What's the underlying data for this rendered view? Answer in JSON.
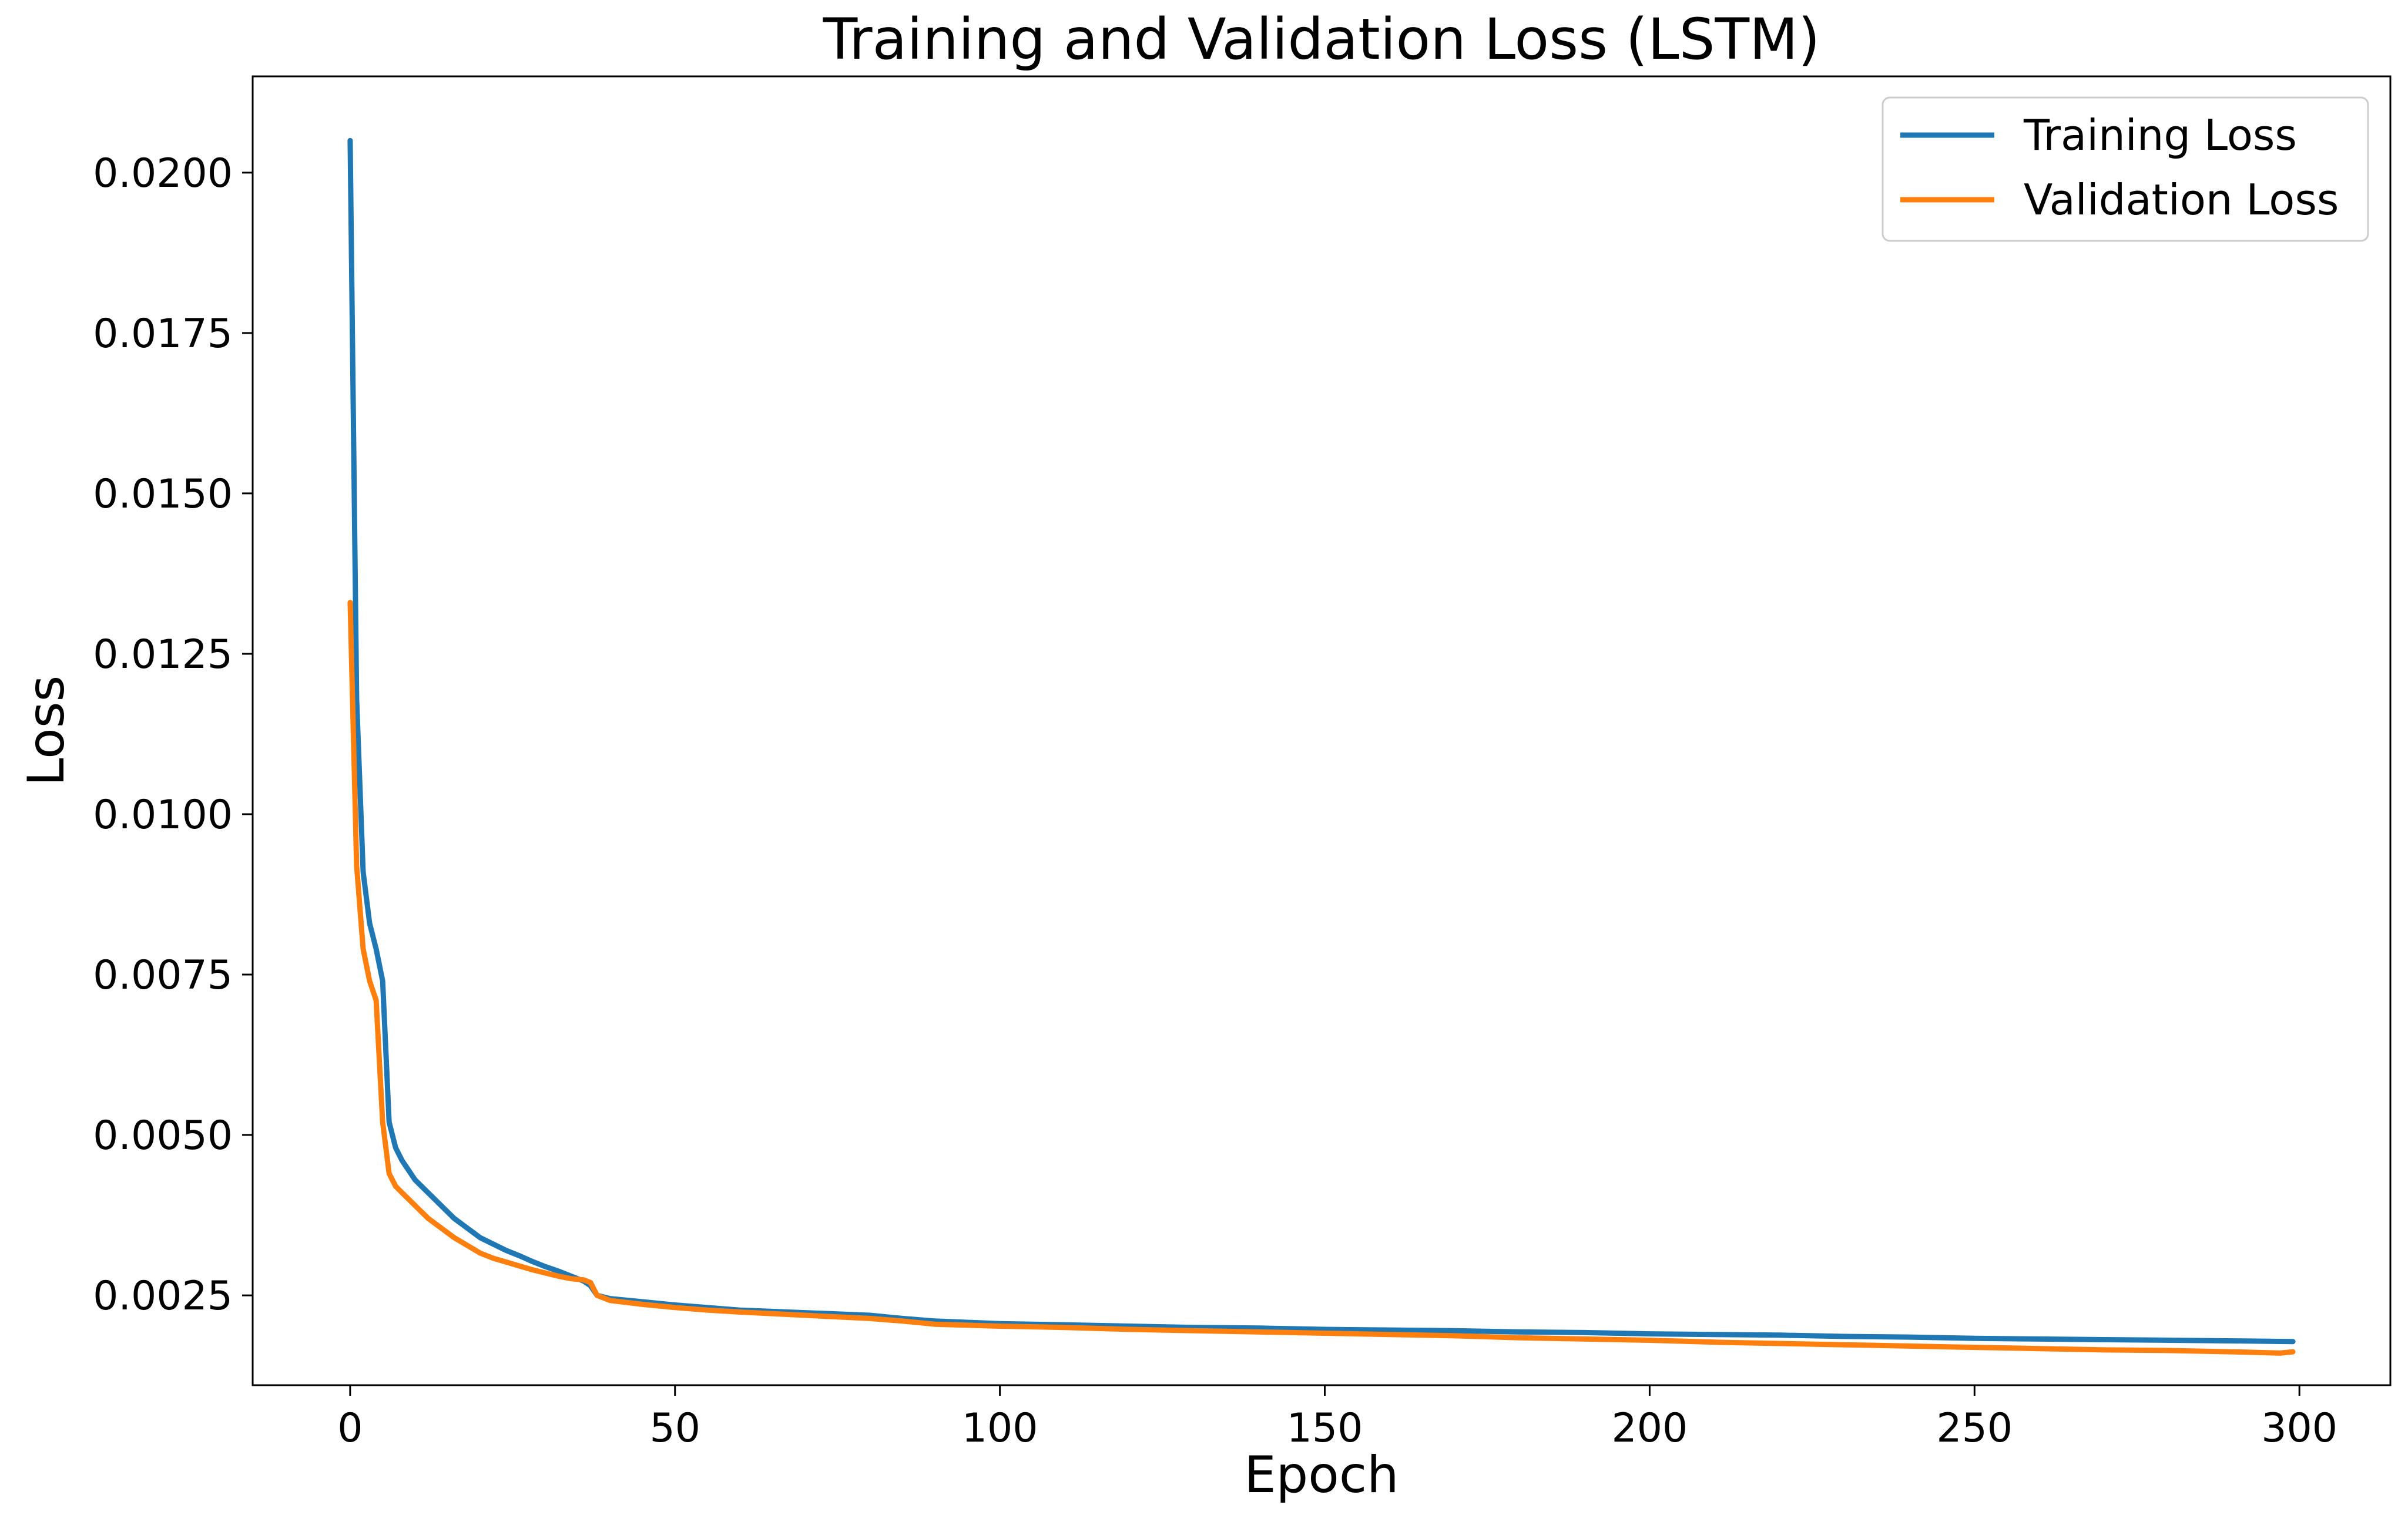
{
  "chart_data": {
    "type": "line",
    "title": "Training and Validation Loss (LSTM)",
    "xlabel": "Epoch",
    "ylabel": "Loss",
    "xlim": [
      -15,
      314
    ],
    "ylim": [
      0.0011,
      0.0215
    ],
    "xticks": [
      0,
      50,
      100,
      150,
      200,
      250,
      300
    ],
    "xtick_labels": [
      "0",
      "50",
      "100",
      "150",
      "200",
      "250",
      "300"
    ],
    "yticks": [
      0.0025,
      0.005,
      0.0075,
      0.01,
      0.0125,
      0.015,
      0.0175,
      0.02
    ],
    "ytick_labels": [
      "0.0025",
      "0.0050",
      "0.0075",
      "0.0100",
      "0.0125",
      "0.0150",
      "0.0175",
      "0.0200"
    ],
    "grid": false,
    "legend_position": "top-right",
    "series": [
      {
        "name": "Training Loss",
        "color": "#1f77b4",
        "x": [
          0,
          1,
          2,
          3,
          4,
          5,
          6,
          7,
          8,
          10,
          12,
          14,
          16,
          18,
          20,
          22,
          24,
          26,
          28,
          30,
          32,
          34,
          36,
          37,
          38,
          40,
          45,
          50,
          55,
          60,
          70,
          80,
          85,
          90,
          100,
          110,
          120,
          130,
          140,
          150,
          160,
          170,
          180,
          190,
          200,
          210,
          220,
          230,
          240,
          250,
          260,
          270,
          280,
          290,
          299
        ],
        "values": [
          0.0205,
          0.0118,
          0.0091,
          0.0083,
          0.0079,
          0.0074,
          0.0052,
          0.0048,
          0.0046,
          0.0043,
          0.0041,
          0.0039,
          0.0037,
          0.00355,
          0.0034,
          0.0033,
          0.0032,
          0.00312,
          0.00303,
          0.00295,
          0.00288,
          0.0028,
          0.00272,
          0.00265,
          0.0025,
          0.00245,
          0.0024,
          0.00235,
          0.00231,
          0.00227,
          0.00223,
          0.00219,
          0.00214,
          0.0021,
          0.00206,
          0.00204,
          0.00202,
          0.002,
          0.00199,
          0.00197,
          0.00196,
          0.00195,
          0.00193,
          0.00192,
          0.0019,
          0.00189,
          0.00188,
          0.00186,
          0.00185,
          0.00183,
          0.00182,
          0.00181,
          0.0018,
          0.00179,
          0.00178
        ]
      },
      {
        "name": "Validation Loss",
        "color": "#ff7f0e",
        "x": [
          0,
          1,
          2,
          3,
          4,
          5,
          6,
          7,
          8,
          10,
          12,
          14,
          16,
          18,
          20,
          22,
          24,
          26,
          28,
          30,
          32,
          34,
          36,
          37,
          38,
          40,
          45,
          50,
          55,
          60,
          70,
          80,
          85,
          90,
          100,
          110,
          120,
          130,
          140,
          150,
          160,
          170,
          180,
          190,
          200,
          210,
          220,
          230,
          240,
          250,
          260,
          270,
          280,
          290,
          297,
          299
        ],
        "values": [
          0.0133,
          0.0092,
          0.0079,
          0.0074,
          0.0071,
          0.0052,
          0.0044,
          0.0042,
          0.0041,
          0.0039,
          0.0037,
          0.00355,
          0.0034,
          0.00328,
          0.00316,
          0.00308,
          0.00302,
          0.00296,
          0.0029,
          0.00285,
          0.0028,
          0.00276,
          0.00274,
          0.0027,
          0.0025,
          0.00242,
          0.00236,
          0.00231,
          0.00227,
          0.00224,
          0.00219,
          0.00214,
          0.0021,
          0.00205,
          0.00202,
          0.002,
          0.00197,
          0.00195,
          0.00193,
          0.00191,
          0.00189,
          0.00187,
          0.00184,
          0.00182,
          0.0018,
          0.00177,
          0.00175,
          0.00173,
          0.00171,
          0.00169,
          0.00167,
          0.00165,
          0.00164,
          0.00162,
          0.0016,
          0.00162
        ]
      }
    ]
  }
}
